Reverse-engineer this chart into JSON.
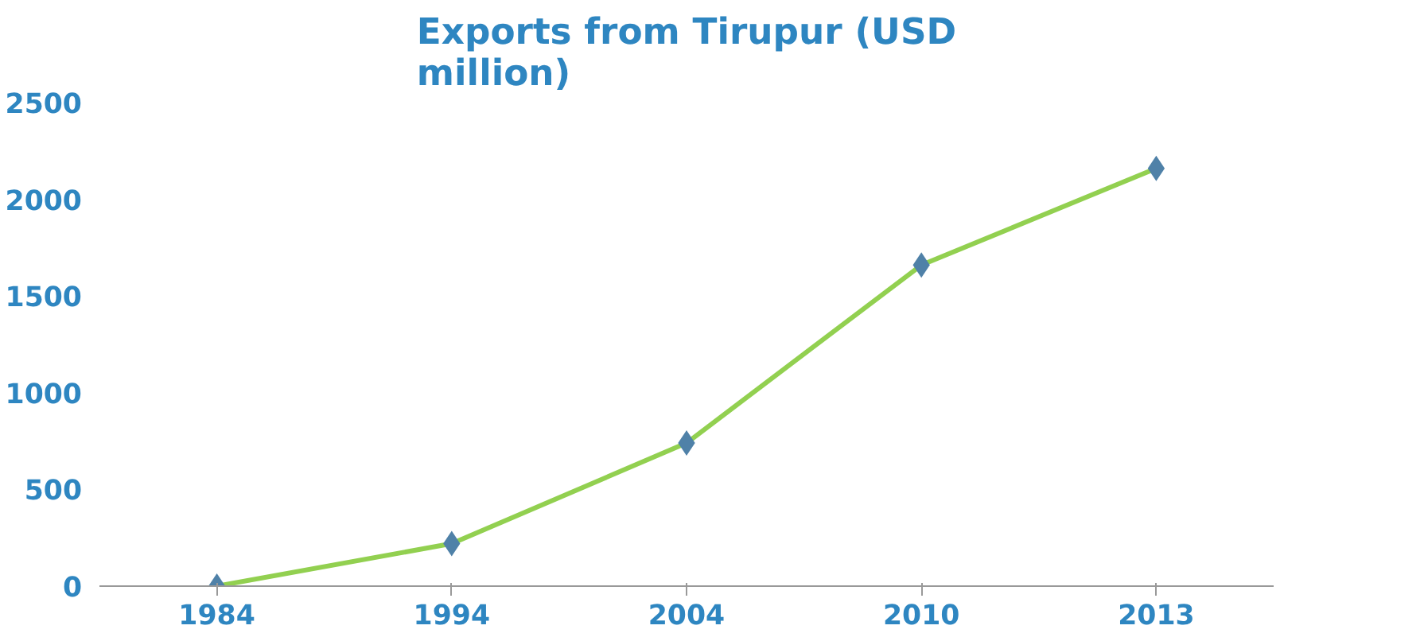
{
  "chart_data": {
    "type": "line",
    "title": "Exports from Tirupur (USD\nmillion)",
    "categories": [
      "1984",
      "1994",
      "2004",
      "2010",
      "2013"
    ],
    "series": [
      {
        "color": "#92d050",
        "colors": [
          "#4f81a8",
          "#4f81a8",
          "#4f81a8",
          "#4f81a8",
          "#4f81a8"
        ],
        "values": [
          0,
          220,
          740,
          1660,
          2160
        ]
      }
    ],
    "ylim": [
      0,
      2500
    ],
    "yticks": [
      0,
      500,
      1000,
      1500,
      2000,
      2500
    ],
    "grid": false,
    "marker": "diamond",
    "line_style": "solid"
  }
}
